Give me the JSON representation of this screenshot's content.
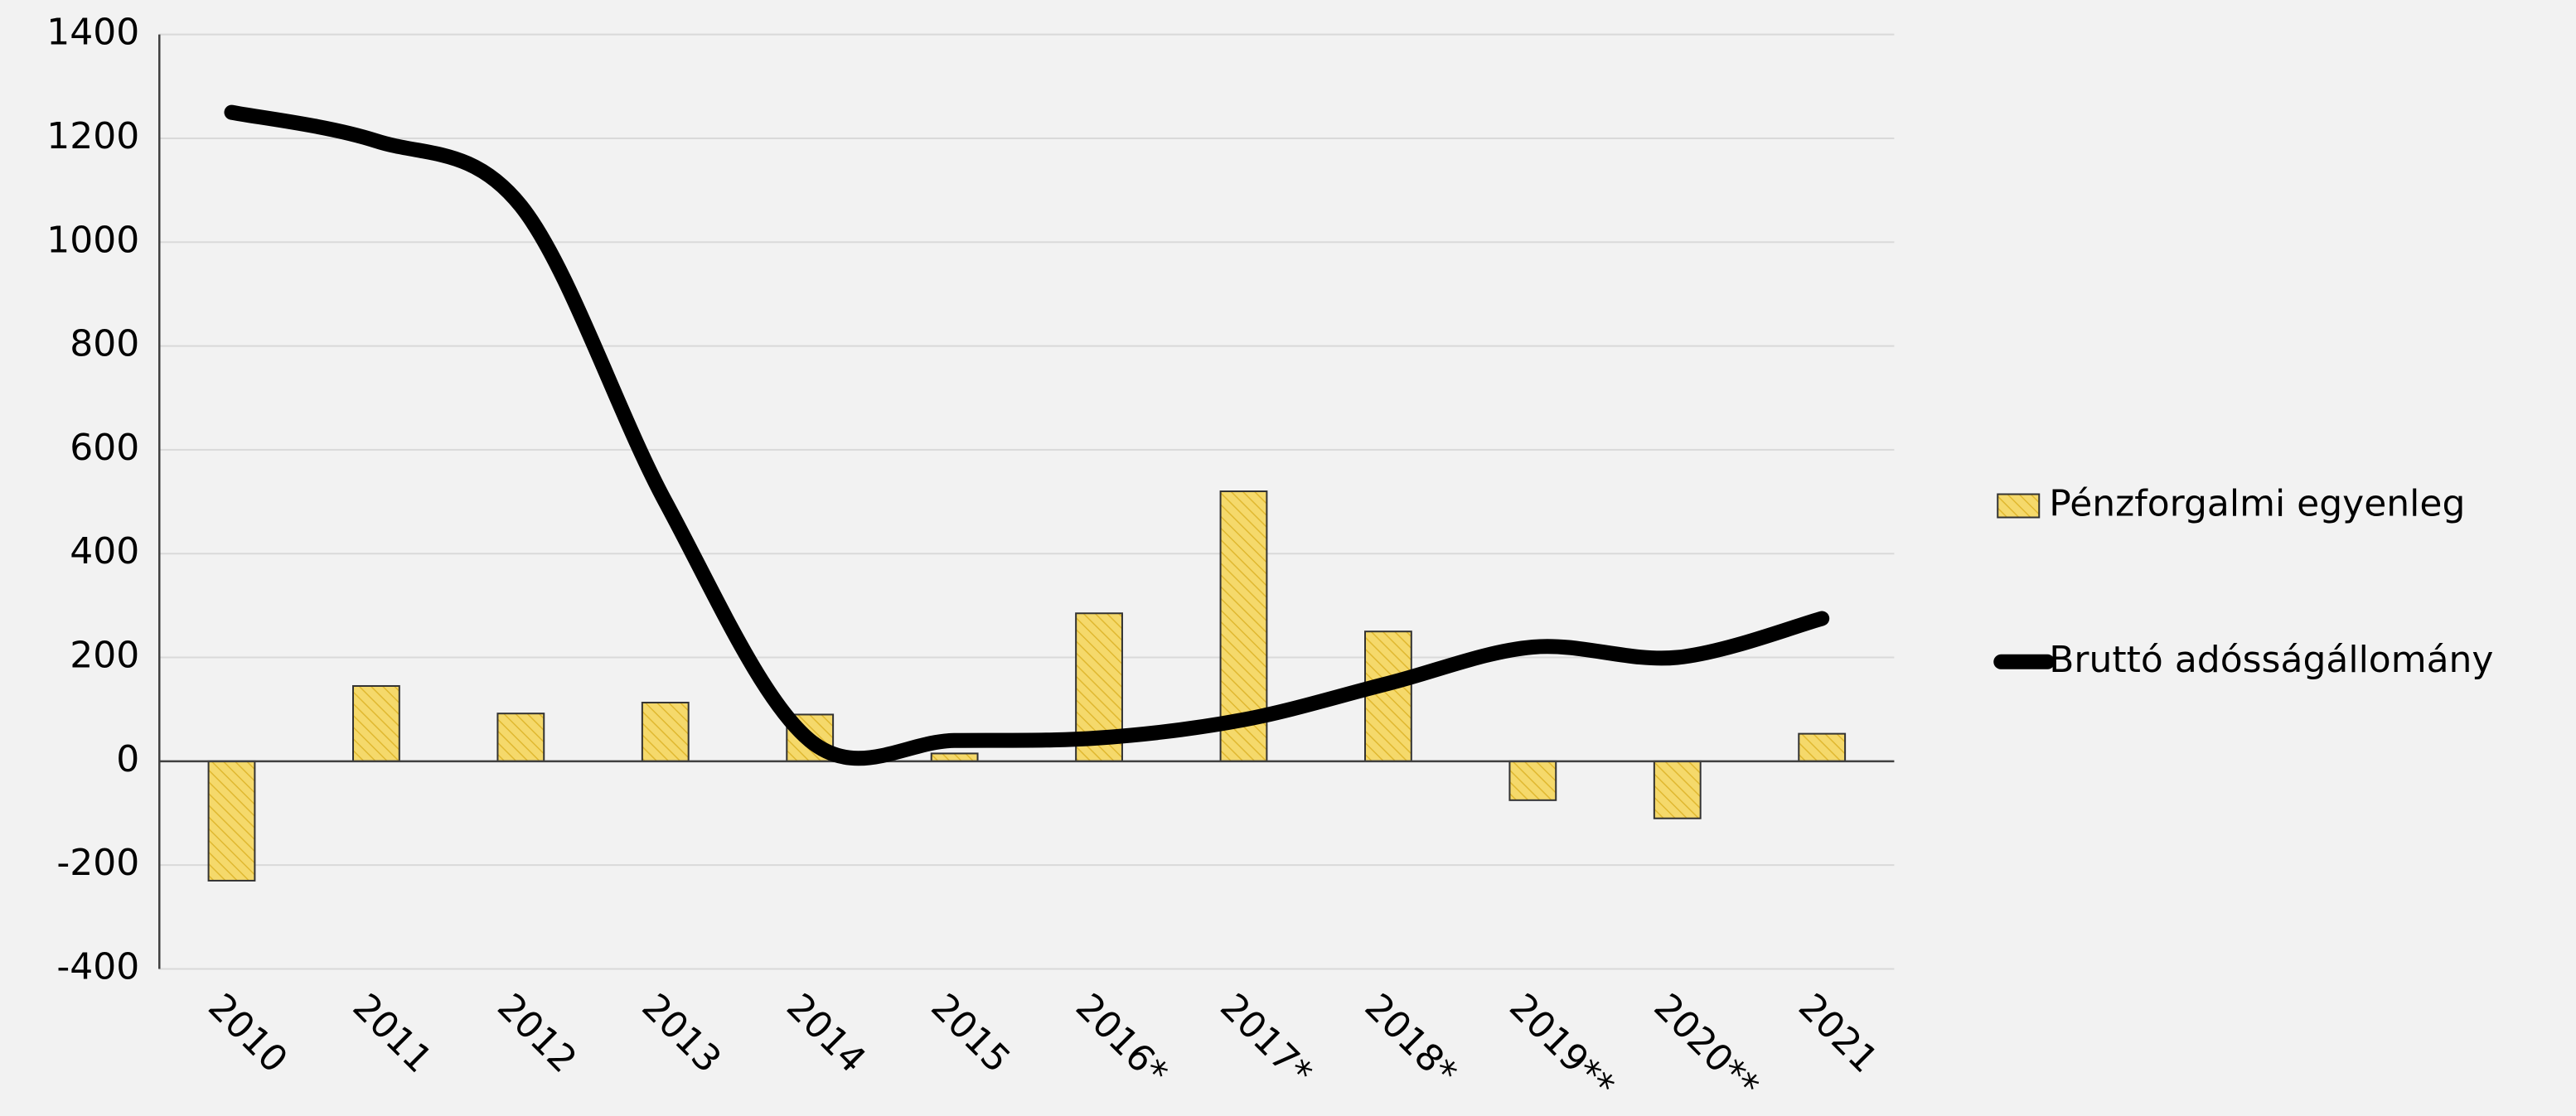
{
  "chart_data": {
    "type": "combo",
    "categories": [
      "2010",
      "2011",
      "2012",
      "2013",
      "2014",
      "2015",
      "2016*",
      "2017*",
      "2018*",
      "2019**",
      "2020**",
      "2021"
    ],
    "series": [
      {
        "name": "Pénzforgalmi egyenleg",
        "type": "bar",
        "color": "#f5d96b",
        "values": [
          -230,
          145,
          92,
          113,
          90,
          15,
          285,
          520,
          250,
          -75,
          -110,
          53
        ]
      },
      {
        "name": "Bruttó adósságállomány",
        "type": "line",
        "color": "#000000",
        "values": [
          1250,
          1195,
          1070,
          500,
          40,
          40,
          45,
          80,
          150,
          220,
          200,
          275
        ]
      }
    ],
    "ylim": [
      -400,
      1400
    ],
    "yticks": [
      -400,
      -200,
      0,
      200,
      400,
      600,
      800,
      1000,
      1200,
      1400
    ],
    "grid": true,
    "legend": "right"
  }
}
